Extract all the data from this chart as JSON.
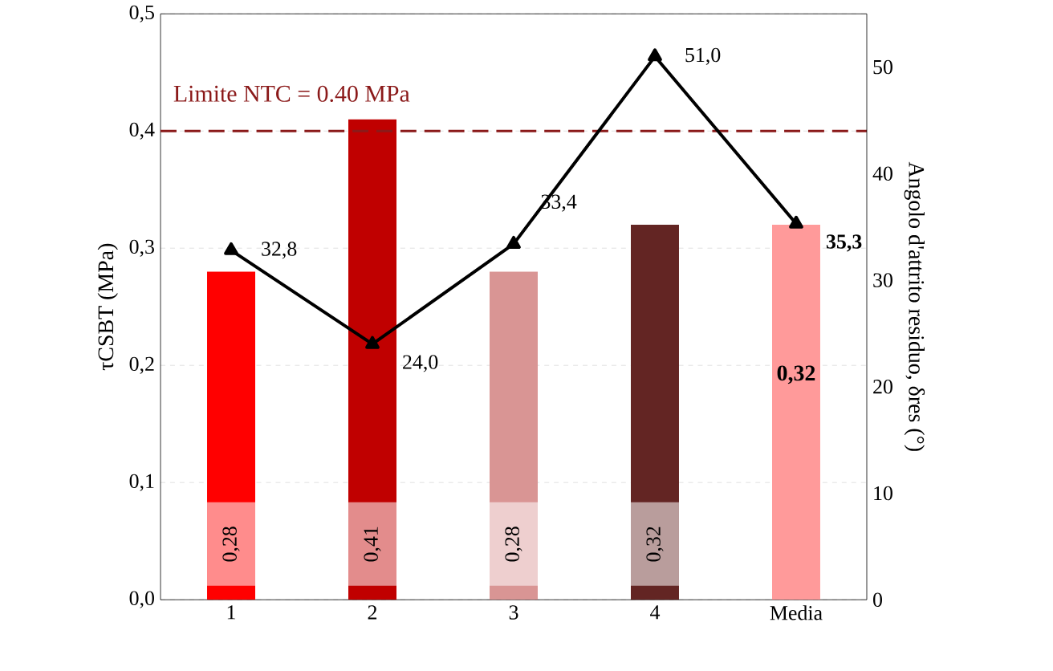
{
  "chart_data": {
    "type": "bar",
    "categories": [
      "1",
      "2",
      "3",
      "4",
      "Media"
    ],
    "ylabel": "τCSBT (MPa)",
    "y2label": "Angolo d'attrito residuo, δres (°)",
    "ylim": [
      0,
      0.5
    ],
    "yticks": [
      {
        "value": 0,
        "label": "0,0"
      },
      {
        "value": 0.1,
        "label": "0,1"
      },
      {
        "value": 0.2,
        "label": "0,2"
      },
      {
        "value": 0.3,
        "label": "0,3"
      },
      {
        "value": 0.4,
        "label": "0,4"
      },
      {
        "value": 0.5,
        "label": "0,5"
      }
    ],
    "y2lim": [
      0,
      55
    ],
    "y2ticks": [
      0,
      10,
      20,
      30,
      40,
      50
    ],
    "grid": "y",
    "marker": "triangle",
    "series": [
      {
        "colors": [
          "#ff0000",
          "#c00000",
          "#d99594",
          "#632523",
          "#ff9a9a"
        ],
        "values": [
          0.28,
          0.41,
          0.28,
          0.32,
          0.32
        ],
        "value_labels": [
          "0,28",
          "0,41",
          "0,28",
          "0,32",
          "0,32"
        ]
      },
      {
        "type": "line",
        "axis": "y2",
        "color": "#000000",
        "values": [
          32.8,
          24.0,
          33.4,
          51.0,
          35.3
        ],
        "value_labels": [
          "32,8",
          "24,0",
          "33,4",
          "51,0",
          "35,3"
        ]
      }
    ],
    "ref_lines": [
      {
        "axis": "y",
        "value": 0.4,
        "label": "Limite  NTC = 0.40 MPa",
        "color": "#8b1a1a",
        "line_style": "dashed"
      }
    ]
  }
}
